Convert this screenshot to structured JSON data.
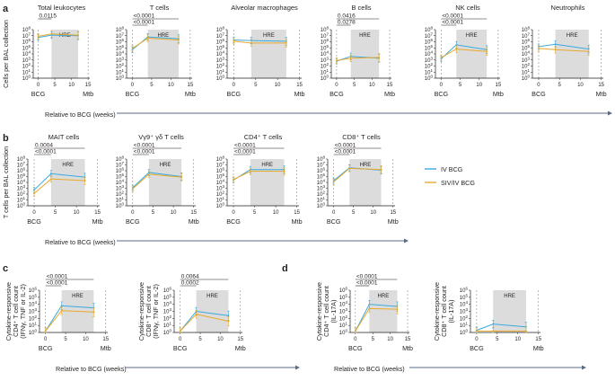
{
  "colors": {
    "iv_bcg": "#3aa9df",
    "siv_iv_bcg": "#e8a92a",
    "hre_shade": "#dcdcdc",
    "axis": "#231f20",
    "arrow": "#5b6b84"
  },
  "legend": {
    "entries": [
      {
        "name": "IV BCG",
        "color": "#3aa9df"
      },
      {
        "name": "SIV/IV BCG",
        "color": "#e8a92a"
      }
    ]
  },
  "shared_text": {
    "hre": "HRE",
    "x_ticks": [
      "0",
      "5",
      "10",
      "15"
    ],
    "x_cat": [
      "BCG",
      "Mtb"
    ]
  },
  "panels": [
    {
      "letter": "a",
      "ylabel": [
        "Cells per BAL collection"
      ],
      "relative_label": "Relative to BCG (weeks)"
    },
    {
      "letter": "b",
      "ylabel": [
        "T cells per BAL collection"
      ],
      "relative_label": "Relative to BCG (weeks)"
    },
    {
      "letter": "c",
      "relative_label": "Relative to BCG (weeks)"
    },
    {
      "letter": "d",
      "relative_label": "Relative to BCG (weeks)"
    }
  ],
  "chart_data": [
    {
      "type": "line",
      "panel": "a",
      "title": "Total leukocytes",
      "xlabel": "Relative to BCG (weeks)",
      "ylabel": "Cells per BAL collection",
      "x": [
        0,
        4,
        12
      ],
      "ylim_log10": [
        0,
        8
      ],
      "ytick_exponents": [
        0,
        1,
        2,
        3,
        4,
        5,
        6,
        7,
        8
      ],
      "hre": [
        4,
        12
      ],
      "series": [
        {
          "name": "IV BCG",
          "values_log10": [
            6.7,
            7.1,
            7.0
          ]
        },
        {
          "name": "SIV/IV BCG",
          "values_log10": [
            6.9,
            7.3,
            7.1
          ]
        }
      ],
      "annotations": [
        {
          "text": "0.0115",
          "from": 0,
          "to": 4
        }
      ]
    },
    {
      "type": "line",
      "panel": "a",
      "title": "T cells",
      "xlabel": "Relative to BCG (weeks)",
      "ylabel": "Cells per BAL collection",
      "x": [
        0,
        4,
        12
      ],
      "ylim_log10": [
        0,
        8
      ],
      "ytick_exponents": [
        0,
        1,
        2,
        3,
        4,
        5,
        6,
        7,
        8
      ],
      "hre": [
        4,
        12
      ],
      "series": [
        {
          "name": "IV BCG",
          "values_log10": [
            4.7,
            6.8,
            6.5
          ]
        },
        {
          "name": "SIV/IV BCG",
          "values_log10": [
            4.9,
            6.6,
            6.3
          ]
        }
      ],
      "annotations": [
        {
          "text": "<0.0001",
          "from": 0,
          "to": 12
        },
        {
          "text": "<0.0001",
          "from": 0,
          "to": 4
        }
      ]
    },
    {
      "type": "line",
      "panel": "a",
      "title": "Alveolar macrophages",
      "xlabel": "Relative to BCG (weeks)",
      "ylabel": "Cells per BAL collection",
      "x": [
        0,
        4,
        12
      ],
      "ylim_log10": [
        0,
        8
      ],
      "ytick_exponents": [
        0,
        1,
        2,
        3,
        4,
        5,
        6,
        7,
        8
      ],
      "hre": [
        4,
        12
      ],
      "series": [
        {
          "name": "IV BCG",
          "values_log10": [
            6.3,
            6.2,
            6.1
          ]
        },
        {
          "name": "SIV/IV BCG",
          "values_log10": [
            6.1,
            5.8,
            5.8
          ]
        }
      ],
      "annotations": []
    },
    {
      "type": "line",
      "panel": "a",
      "title": "B cells",
      "xlabel": "Relative to BCG (weeks)",
      "ylabel": "Cells per BAL collection",
      "x": [
        0,
        4,
        12
      ],
      "ylim_log10": [
        0,
        8
      ],
      "ytick_exponents": [
        0,
        1,
        2,
        3,
        4,
        5,
        6,
        7,
        8
      ],
      "hre": [
        4,
        12
      ],
      "series": [
        {
          "name": "IV BCG",
          "values_log10": [
            2.8,
            3.6,
            3.3
          ]
        },
        {
          "name": "SIV/IV BCG",
          "values_log10": [
            2.9,
            3.3,
            3.4
          ]
        }
      ],
      "annotations": [
        {
          "text": "0.0416",
          "from": 0,
          "to": 12
        },
        {
          "text": "0.0278",
          "from": 0,
          "to": 4
        }
      ]
    },
    {
      "type": "line",
      "panel": "a",
      "title": "NK cells",
      "xlabel": "Relative to BCG (weeks)",
      "ylabel": "Cells per BAL collection",
      "x": [
        0,
        4,
        12
      ],
      "ylim_log10": [
        0,
        8
      ],
      "ytick_exponents": [
        0,
        1,
        2,
        3,
        4,
        5,
        6,
        7,
        8
      ],
      "hre": [
        4,
        12
      ],
      "series": [
        {
          "name": "IV BCG",
          "values_log10": [
            3.2,
            5.5,
            4.7
          ]
        },
        {
          "name": "SIV/IV BCG",
          "values_log10": [
            3.4,
            4.8,
            4.4
          ]
        }
      ],
      "annotations": [
        {
          "text": "<0.0001",
          "from": 0,
          "to": 12
        },
        {
          "text": "<0.0001",
          "from": 0,
          "to": 4
        }
      ]
    },
    {
      "type": "line",
      "panel": "a",
      "title": "Neutrophils",
      "xlabel": "Relative to BCG (weeks)",
      "ylabel": "Cells per BAL collection",
      "x": [
        0,
        4,
        12
      ],
      "ylim_log10": [
        0,
        8
      ],
      "ytick_exponents": [
        0,
        1,
        2,
        3,
        4,
        5,
        6,
        7,
        8
      ],
      "hre": [
        4,
        12
      ],
      "series": [
        {
          "name": "IV BCG",
          "values_log10": [
            5.2,
            5.6,
            4.8
          ]
        },
        {
          "name": "SIV/IV BCG",
          "values_log10": [
            4.9,
            4.7,
            4.4
          ]
        }
      ],
      "annotations": []
    },
    {
      "type": "line",
      "panel": "b",
      "title": "MAIT cells",
      "xlabel": "Relative to BCG (weeks)",
      "ylabel": "T cells per BAL collection",
      "x": [
        0,
        4,
        12
      ],
      "ylim_log10": [
        0,
        8
      ],
      "ytick_exponents": [
        0,
        1,
        2,
        3,
        4,
        5,
        6,
        7,
        8
      ],
      "hre": [
        4,
        12
      ],
      "series": [
        {
          "name": "IV BCG",
          "values_log10": [
            2.7,
            5.5,
            4.9
          ]
        },
        {
          "name": "SIV/IV BCG",
          "values_log10": [
            2.1,
            4.6,
            4.3
          ]
        }
      ],
      "annotations": [
        {
          "text": "0.0004",
          "from": 0,
          "to": 12
        },
        {
          "text": "<0.0001",
          "from": 0,
          "to": 4
        }
      ]
    },
    {
      "type": "line",
      "panel": "b",
      "title": "Vγ9⁺ γδ T cells",
      "xlabel": "Relative to BCG (weeks)",
      "ylabel": "T cells per BAL collection",
      "x": [
        0,
        4,
        12
      ],
      "ylim_log10": [
        0,
        8
      ],
      "ytick_exponents": [
        0,
        1,
        2,
        3,
        4,
        5,
        6,
        7,
        8
      ],
      "hre": [
        4,
        12
      ],
      "series": [
        {
          "name": "IV BCG",
          "values_log10": [
            3.1,
            5.7,
            5.0
          ]
        },
        {
          "name": "SIV/IV BCG",
          "values_log10": [
            2.9,
            5.4,
            4.9
          ]
        }
      ],
      "annotations": [
        {
          "text": "<0.0001",
          "from": 0,
          "to": 12
        },
        {
          "text": "<0.0001",
          "from": 0,
          "to": 4
        }
      ]
    },
    {
      "type": "line",
      "panel": "b",
      "title": "CD4⁺ T cells",
      "xlabel": "Relative to BCG (weeks)",
      "ylabel": "T cells per BAL collection",
      "x": [
        0,
        4,
        12
      ],
      "ylim_log10": [
        0,
        8
      ],
      "ytick_exponents": [
        0,
        1,
        2,
        3,
        4,
        5,
        6,
        7,
        8
      ],
      "hre": [
        4,
        12
      ],
      "series": [
        {
          "name": "IV BCG",
          "values_log10": [
            4.4,
            6.2,
            6.2
          ]
        },
        {
          "name": "SIV/IV BCG",
          "values_log10": [
            4.5,
            5.9,
            5.9
          ]
        }
      ],
      "annotations": [
        {
          "text": "<0.0001",
          "from": 0,
          "to": 12
        },
        {
          "text": "<0.0001",
          "from": 0,
          "to": 4
        }
      ]
    },
    {
      "type": "line",
      "panel": "b",
      "title": "CD8⁺ T cells",
      "xlabel": "Relative to BCG (weeks)",
      "ylabel": "T cells per BAL collection",
      "x": [
        0,
        4,
        12
      ],
      "ylim_log10": [
        0,
        8
      ],
      "ytick_exponents": [
        0,
        1,
        2,
        3,
        4,
        5,
        6,
        7,
        8
      ],
      "hre": [
        4,
        12
      ],
      "series": [
        {
          "name": "IV BCG",
          "values_log10": [
            4.3,
            6.5,
            6.1
          ]
        },
        {
          "name": "SIV/IV BCG",
          "values_log10": [
            4.1,
            6.4,
            6.2
          ]
        }
      ],
      "annotations": [
        {
          "text": "<0.0001",
          "from": 0,
          "to": 12
        },
        {
          "text": "<0.0001",
          "from": 0,
          "to": 4
        }
      ]
    },
    {
      "type": "line",
      "panel": "c",
      "title": "",
      "xlabel": "Relative to BCG (weeks)",
      "ylabel_lines": [
        "Cytokine-responsive",
        "CD4⁺ T cell count",
        "(IFNγ, TNF or IL-2)"
      ],
      "x": [
        0,
        4,
        12
      ],
      "ylim_log10": [
        0,
        6
      ],
      "ytick_exponents": [
        0,
        1,
        2,
        3,
        4,
        5,
        6
      ],
      "hre": [
        4,
        12
      ],
      "series": [
        {
          "name": "IV BCG",
          "values_log10": [
            0.2,
            3.8,
            3.5
          ]
        },
        {
          "name": "SIV/IV BCG",
          "values_log10": [
            0.2,
            3.1,
            2.9
          ]
        }
      ],
      "annotations": [
        {
          "text": "<0.0001",
          "from": 0,
          "to": 12
        },
        {
          "text": "<0.0001",
          "from": 0,
          "to": 4
        }
      ]
    },
    {
      "type": "line",
      "panel": "c",
      "title": "",
      "xlabel": "Relative to BCG (weeks)",
      "ylabel_lines": [
        "Cytokine-responsive",
        "CD8⁺ T cell count",
        "(IFNγ, TNF or IL-2)"
      ],
      "x": [
        0,
        4,
        12
      ],
      "ylim_log10": [
        0,
        6
      ],
      "ytick_exponents": [
        0,
        1,
        2,
        3,
        4,
        5,
        6
      ],
      "hre": [
        4,
        12
      ],
      "series": [
        {
          "name": "IV BCG",
          "values_log10": [
            0.2,
            3.0,
            2.4
          ]
        },
        {
          "name": "SIV/IV BCG",
          "values_log10": [
            0.2,
            2.6,
            1.6
          ]
        }
      ],
      "annotations": [
        {
          "text": "0.0064",
          "from": 0,
          "to": 12
        },
        {
          "text": "0.0002",
          "from": 0,
          "to": 4
        }
      ]
    },
    {
      "type": "line",
      "panel": "d",
      "title": "",
      "xlabel": "Relative to BCG (weeks)",
      "ylabel_lines": [
        "Cytokine-responsive",
        "CD4⁺ T cell count",
        "(IL-17A)"
      ],
      "x": [
        0,
        4,
        12
      ],
      "ylim_log10": [
        0,
        6
      ],
      "ytick_exponents": [
        0,
        1,
        2,
        3,
        4,
        5,
        6
      ],
      "hre": [
        4,
        12
      ],
      "series": [
        {
          "name": "IV BCG",
          "values_log10": [
            0.2,
            4.0,
            3.7
          ]
        },
        {
          "name": "SIV/IV BCG",
          "values_log10": [
            0.2,
            3.4,
            3.3
          ]
        }
      ],
      "annotations": [
        {
          "text": "<0.0001",
          "from": 0,
          "to": 12
        },
        {
          "text": "<0.0001",
          "from": 0,
          "to": 4
        }
      ]
    },
    {
      "type": "line",
      "panel": "d",
      "title": "",
      "xlabel": "Relative to BCG (weeks)",
      "ylabel_lines": [
        "Cytokine-responsive",
        "CD8⁺ T cell count",
        "(IL-17A)"
      ],
      "x": [
        0,
        4,
        12
      ],
      "ylim_log10": [
        0,
        6
      ],
      "ytick_exponents": [
        0,
        1,
        2,
        3,
        4,
        5,
        6
      ],
      "hre": [
        4,
        12
      ],
      "series": [
        {
          "name": "IV BCG",
          "values_log10": [
            0.3,
            1.2,
            0.8
          ]
        },
        {
          "name": "SIV/IV BCG",
          "values_log10": [
            0.2,
            0.2,
            0.2
          ]
        }
      ],
      "annotations": []
    }
  ]
}
